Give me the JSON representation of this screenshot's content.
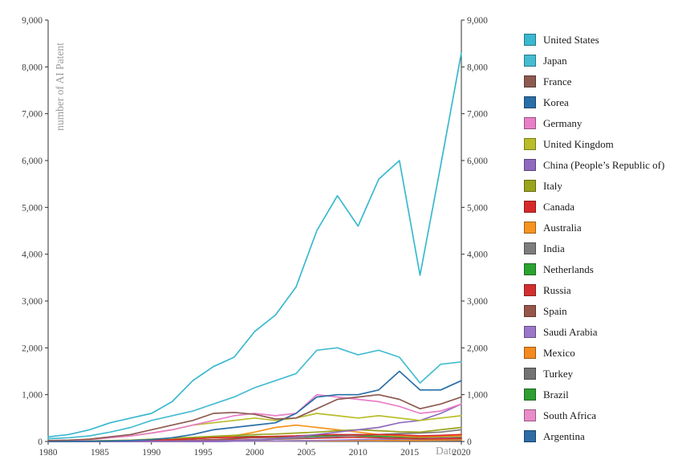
{
  "chart_data": {
    "type": "line",
    "title": "",
    "xlabel": "Date",
    "ylabel": "number of AI Patent",
    "xlim": [
      1980,
      2020
    ],
    "ylim": [
      0,
      9000
    ],
    "grid": false,
    "legend_position": "right",
    "x_ticks": [
      1980,
      1985,
      1990,
      1995,
      2000,
      2005,
      2010,
      2015,
      2020
    ],
    "y_ticks": [
      0,
      1000,
      2000,
      3000,
      4000,
      5000,
      6000,
      7000,
      8000,
      9000
    ],
    "x": [
      1980,
      1982,
      1984,
      1986,
      1988,
      1990,
      1992,
      1994,
      1996,
      1998,
      2000,
      2002,
      2004,
      2006,
      2008,
      2010,
      2012,
      2014,
      2016,
      2018,
      2020
    ],
    "series": [
      {
        "name": "United States",
        "color": "#39b8cf",
        "values": [
          100,
          150,
          250,
          400,
          500,
          600,
          850,
          1300,
          1600,
          1800,
          2350,
          2700,
          3300,
          4500,
          5250,
          4600,
          5600,
          6000,
          3550,
          5900,
          8300
        ]
      },
      {
        "name": "Japan",
        "color": "#45bcd2",
        "values": [
          60,
          80,
          120,
          200,
          300,
          450,
          550,
          650,
          800,
          950,
          1150,
          1300,
          1450,
          1950,
          2000,
          1850,
          1950,
          1800,
          1250,
          1650,
          1700
        ]
      },
      {
        "name": "France",
        "color": "#8d5a50",
        "values": [
          20,
          30,
          50,
          100,
          150,
          250,
          350,
          450,
          600,
          620,
          580,
          480,
          500,
          700,
          900,
          950,
          1000,
          900,
          700,
          800,
          950
        ]
      },
      {
        "name": "Korea",
        "color": "#2a6fa8",
        "values": [
          0,
          0,
          5,
          10,
          20,
          40,
          80,
          150,
          250,
          300,
          350,
          400,
          600,
          950,
          1000,
          1000,
          1100,
          1500,
          1100,
          1100,
          1300
        ]
      },
      {
        "name": "Germany",
        "color": "#e87fc8",
        "values": [
          10,
          20,
          40,
          80,
          120,
          180,
          250,
          350,
          450,
          550,
          600,
          550,
          600,
          1000,
          950,
          900,
          850,
          750,
          600,
          650,
          800
        ]
      },
      {
        "name": "United Kingdom",
        "color": "#b9bd2a",
        "values": [
          15,
          20,
          40,
          80,
          120,
          180,
          250,
          350,
          400,
          450,
          500,
          450,
          500,
          600,
          550,
          500,
          550,
          500,
          450,
          500,
          550
        ]
      },
      {
        "name": "China (People’s Republic of)",
        "color": "#8f6bbf",
        "values": [
          0,
          0,
          0,
          0,
          0,
          5,
          5,
          10,
          10,
          20,
          40,
          60,
          100,
          150,
          200,
          250,
          300,
          400,
          450,
          600,
          800
        ]
      },
      {
        "name": "Italy",
        "color": "#9aa41c",
        "values": [
          5,
          8,
          10,
          20,
          30,
          50,
          70,
          90,
          110,
          130,
          150,
          160,
          180,
          200,
          230,
          250,
          230,
          210,
          200,
          250,
          300
        ]
      },
      {
        "name": "Canada",
        "color": "#d62a2a",
        "values": [
          5,
          5,
          10,
          15,
          20,
          30,
          40,
          60,
          80,
          90,
          100,
          110,
          120,
          140,
          150,
          140,
          150,
          140,
          120,
          130,
          150
        ]
      },
      {
        "name": "Australia",
        "color": "#f79420",
        "values": [
          2,
          3,
          5,
          10,
          15,
          25,
          40,
          60,
          90,
          120,
          200,
          300,
          350,
          300,
          250,
          200,
          150,
          120,
          100,
          110,
          120
        ]
      },
      {
        "name": "India",
        "color": "#7d7d7d",
        "values": [
          0,
          0,
          0,
          0,
          0,
          5,
          5,
          10,
          15,
          20,
          30,
          50,
          70,
          90,
          110,
          130,
          150,
          170,
          180,
          200,
          250
        ]
      },
      {
        "name": "Netherlands",
        "color": "#2ca330",
        "values": [
          5,
          5,
          10,
          15,
          20,
          30,
          40,
          60,
          80,
          100,
          110,
          100,
          110,
          120,
          130,
          120,
          110,
          100,
          90,
          100,
          110
        ]
      },
      {
        "name": "Russia",
        "color": "#d23030",
        "values": [
          0,
          0,
          0,
          0,
          0,
          5,
          10,
          15,
          20,
          30,
          40,
          50,
          60,
          70,
          80,
          90,
          80,
          70,
          60,
          60,
          70
        ]
      },
      {
        "name": "Spain",
        "color": "#97564a",
        "values": [
          0,
          0,
          5,
          5,
          10,
          15,
          20,
          30,
          40,
          60,
          80,
          90,
          100,
          120,
          140,
          150,
          140,
          130,
          110,
          120,
          130
        ]
      },
      {
        "name": "Saudi Arabia",
        "color": "#9a77c8",
        "values": [
          0,
          0,
          0,
          0,
          0,
          0,
          0,
          0,
          0,
          5,
          5,
          10,
          10,
          20,
          30,
          40,
          50,
          60,
          60,
          70,
          80
        ]
      },
      {
        "name": "Mexico",
        "color": "#f58b1f",
        "values": [
          0,
          0,
          0,
          0,
          0,
          0,
          0,
          5,
          5,
          5,
          10,
          10,
          10,
          15,
          15,
          20,
          20,
          20,
          20,
          25,
          30
        ]
      },
      {
        "name": "Turkey",
        "color": "#737373",
        "values": [
          0,
          0,
          0,
          0,
          0,
          0,
          0,
          0,
          0,
          5,
          5,
          5,
          10,
          10,
          15,
          20,
          25,
          30,
          35,
          45,
          55
        ]
      },
      {
        "name": "Brazil",
        "color": "#2f9e33",
        "values": [
          0,
          0,
          0,
          0,
          0,
          0,
          0,
          5,
          5,
          5,
          10,
          10,
          15,
          15,
          20,
          20,
          25,
          25,
          30,
          35,
          40
        ]
      },
      {
        "name": "South Africa",
        "color": "#ea8cc9",
        "values": [
          0,
          0,
          0,
          0,
          0,
          0,
          5,
          5,
          5,
          10,
          10,
          10,
          15,
          15,
          20,
          20,
          20,
          25,
          25,
          30,
          30
        ]
      },
      {
        "name": "Argentina",
        "color": "#2d6ca5",
        "values": [
          0,
          0,
          0,
          0,
          0,
          0,
          0,
          0,
          0,
          5,
          5,
          5,
          5,
          10,
          10,
          10,
          10,
          15,
          15,
          15,
          20
        ]
      }
    ]
  }
}
